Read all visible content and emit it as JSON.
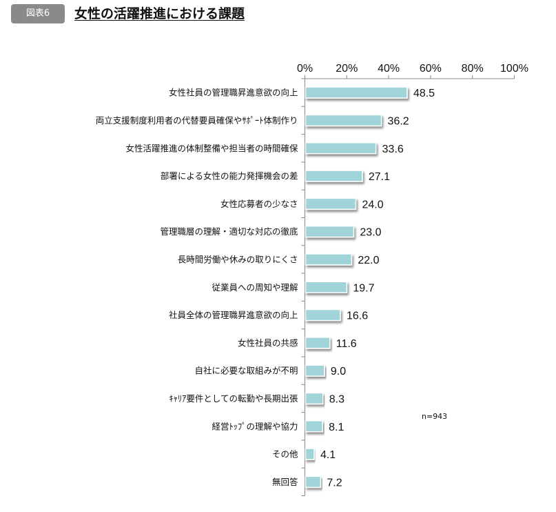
{
  "header": {
    "badge": "図表6",
    "title": "女性の活躍推進における課題"
  },
  "note": "n=943",
  "chart_data": {
    "type": "bar",
    "orientation": "horizontal",
    "title": "女性の活躍推進における課題",
    "xlim": [
      0,
      100
    ],
    "xticks": [
      "0%",
      "20%",
      "40%",
      "60%",
      "80%",
      "100%"
    ],
    "categories": [
      "女性社員の管理職昇進意欲の向上",
      "両立支援制度利用者の代替要員確保やｻﾎﾟｰﾄ体制作り",
      "女性活躍推進の体制整備や担当者の時間確保",
      "部署による女性の能力発揮機会の差",
      "女性応募者の少なさ",
      "管理職層の理解・適切な対応の徹底",
      "長時間労働や休みの取りにくさ",
      "従業員への周知や理解",
      "社員全体の管理職昇進意欲の向上",
      "女性社員の共感",
      "自社に必要な取組みが不明",
      "ｷｬﾘｱ要件としての転勤や長期出張",
      "経営ﾄｯﾌﾟの理解や協力",
      "その他",
      "無回答"
    ],
    "values": [
      48.5,
      36.2,
      33.6,
      27.1,
      24.0,
      23.0,
      22.0,
      19.7,
      16.6,
      11.6,
      9.0,
      8.3,
      8.1,
      4.1,
      7.2
    ],
    "value_labels": [
      "48.5",
      "36.2",
      "33.6",
      "27.1",
      "24.0",
      "23.0",
      "22.0",
      "19.7",
      "16.6",
      "11.6",
      "9.0",
      "8.3",
      "8.1",
      "4.1",
      "7.2"
    ],
    "bar_color": "#a0d4d8",
    "grid": false,
    "legend": "none"
  }
}
